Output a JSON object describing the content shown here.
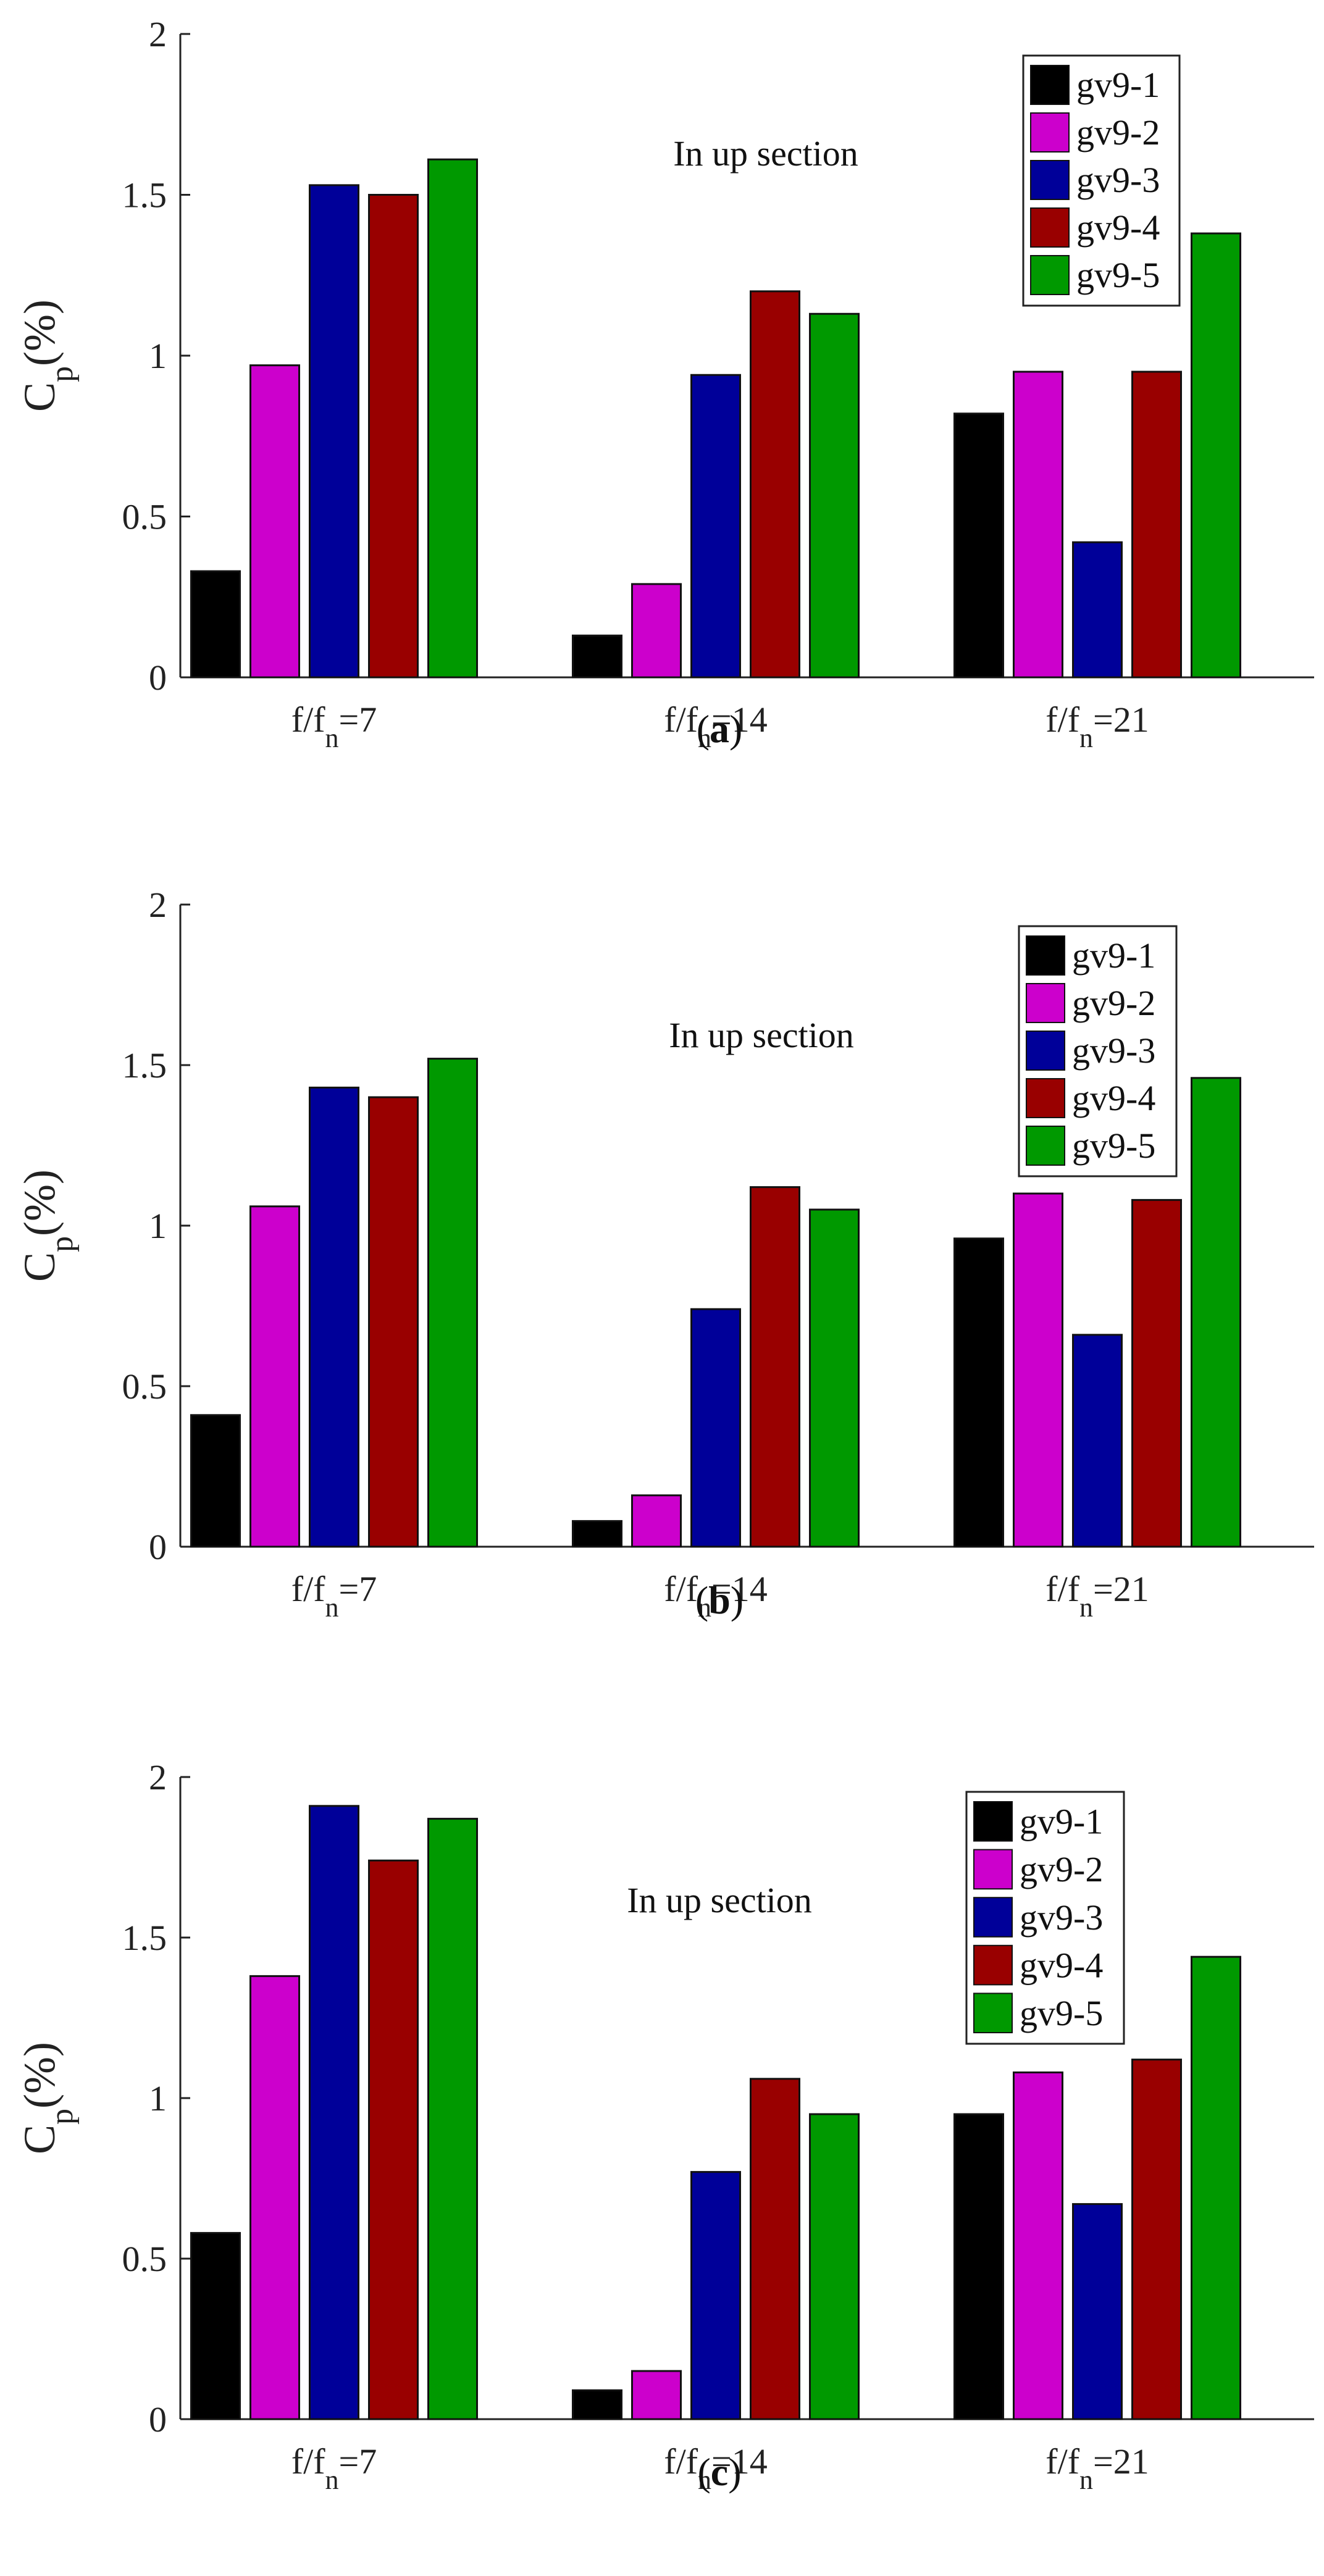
{
  "chart_data": [
    {
      "type": "bar",
      "panel_label": "a",
      "annotation": "In up section",
      "ylabel": {
        "main": "C",
        "sub": "p",
        "suffix": "(%)"
      },
      "ylim": [
        0,
        2
      ],
      "yticks": [
        "0",
        "0.5",
        "1",
        "1.5",
        "2"
      ],
      "categories": [
        {
          "main": "f/f",
          "sub": "n",
          "suffix": "=7"
        },
        {
          "main": "f/f",
          "sub": "n",
          "suffix": "=14"
        },
        {
          "main": "f/f",
          "sub": "n",
          "suffix": "=21"
        }
      ],
      "legend_position": "top-right",
      "series": [
        {
          "name": "gv9-1",
          "color": "#000000",
          "values": [
            0.33,
            0.13,
            0.82
          ]
        },
        {
          "name": "gv9-2",
          "color": "#CC00CC",
          "values": [
            0.97,
            0.29,
            0.95
          ]
        },
        {
          "name": "gv9-3",
          "color": "#000099",
          "values": [
            1.53,
            0.94,
            0.42
          ]
        },
        {
          "name": "gv9-4",
          "color": "#990000",
          "values": [
            1.5,
            1.2,
            0.95
          ]
        },
        {
          "name": "gv9-5",
          "color": "#009900",
          "values": [
            1.61,
            1.13,
            1.38
          ]
        }
      ]
    },
    {
      "type": "bar",
      "panel_label": "b",
      "annotation": "In up section",
      "ylabel": {
        "main": "C",
        "sub": "p",
        "suffix": "(%)"
      },
      "ylim": [
        0,
        2
      ],
      "yticks": [
        "0",
        "0.5",
        "1",
        "1.5",
        "2"
      ],
      "categories": [
        {
          "main": "f/f",
          "sub": "n",
          "suffix": "=7"
        },
        {
          "main": "f/f",
          "sub": "n",
          "suffix": "=14"
        },
        {
          "main": "f/f",
          "sub": "n",
          "suffix": "=21"
        }
      ],
      "legend_position": "top-right",
      "series": [
        {
          "name": "gv9-1",
          "color": "#000000",
          "values": [
            0.41,
            0.08,
            0.96
          ]
        },
        {
          "name": "gv9-2",
          "color": "#CC00CC",
          "values": [
            1.06,
            0.16,
            1.1
          ]
        },
        {
          "name": "gv9-3",
          "color": "#000099",
          "values": [
            1.43,
            0.74,
            0.66
          ]
        },
        {
          "name": "gv9-4",
          "color": "#990000",
          "values": [
            1.4,
            1.12,
            1.08
          ]
        },
        {
          "name": "gv9-5",
          "color": "#009900",
          "values": [
            1.52,
            1.05,
            1.46
          ]
        }
      ]
    },
    {
      "type": "bar",
      "panel_label": "c",
      "annotation": "In up section",
      "ylabel": {
        "main": "C",
        "sub": "p",
        "suffix": "(%)"
      },
      "ylim": [
        0,
        2
      ],
      "yticks": [
        "0",
        "0.5",
        "1",
        "1.5",
        "2"
      ],
      "categories": [
        {
          "main": "f/f",
          "sub": "n",
          "suffix": "=7"
        },
        {
          "main": "f/f",
          "sub": "n",
          "suffix": "=14"
        },
        {
          "main": "f/f",
          "sub": "n",
          "suffix": "=21"
        }
      ],
      "legend_position": "top-right",
      "series": [
        {
          "name": "gv9-1",
          "color": "#000000",
          "values": [
            0.58,
            0.09,
            0.95
          ]
        },
        {
          "name": "gv9-2",
          "color": "#CC00CC",
          "values": [
            1.38,
            0.15,
            1.08
          ]
        },
        {
          "name": "gv9-3",
          "color": "#000099",
          "values": [
            1.91,
            0.77,
            0.67
          ]
        },
        {
          "name": "gv9-4",
          "color": "#990000",
          "values": [
            1.74,
            1.06,
            1.12
          ]
        },
        {
          "name": "gv9-5",
          "color": "#009900",
          "values": [
            1.87,
            0.95,
            1.44
          ]
        }
      ]
    }
  ]
}
